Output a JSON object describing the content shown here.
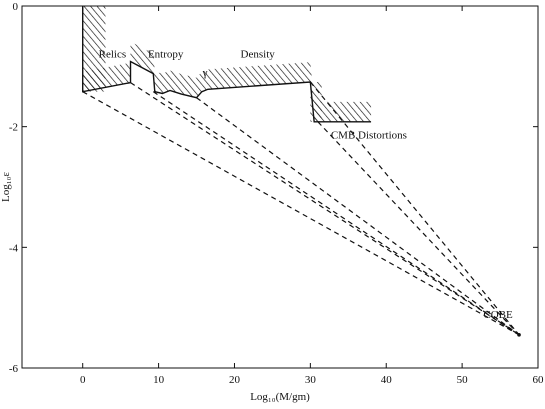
{
  "chart_data": {
    "type": "line",
    "title": "",
    "xlabel": "Log₁₀(M/gm)",
    "ylabel": "Log₁₀ε",
    "xlim": [
      -8,
      60
    ],
    "ylim": [
      -6,
      0
    ],
    "xticks": [
      {
        "value": 0,
        "label": "0"
      },
      {
        "value": 10,
        "label": "10"
      },
      {
        "value": 20,
        "label": "20"
      },
      {
        "value": 30,
        "label": "30"
      },
      {
        "value": 40,
        "label": "40"
      },
      {
        "value": 50,
        "label": "50"
      },
      {
        "value": 60,
        "label": "60"
      }
    ],
    "yticks": [
      {
        "value": 0,
        "label": "0"
      },
      {
        "value": -2,
        "label": "-2"
      },
      {
        "value": -4,
        "label": "-4"
      },
      {
        "value": -6,
        "label": "-6"
      }
    ],
    "grid": false,
    "legend": "none",
    "constraint_boundary": {
      "style": "solid hatched",
      "x": [
        0,
        0,
        6.3,
        6.3,
        6.3,
        9.3,
        9.5,
        10.5,
        11.5,
        13,
        15,
        15.7,
        16.5,
        30,
        30.5,
        31,
        38
      ],
      "y": [
        0,
        -1.42,
        -1.27,
        -1.27,
        -0.92,
        -1.12,
        -1.42,
        -1.45,
        -1.4,
        -1.46,
        -1.52,
        -1.42,
        -1.38,
        -1.26,
        -1.92,
        -1.92,
        -1.92
      ]
    },
    "cobe_point": {
      "x": 57.5,
      "y": -5.45
    },
    "dashed_lines": [
      {
        "x": [
          0,
          57.5
        ],
        "y": [
          -1.42,
          -5.45
        ]
      },
      {
        "x": [
          6.3,
          57.5
        ],
        "y": [
          -1.27,
          -5.45
        ]
      },
      {
        "x": [
          9.3,
          57.5
        ],
        "y": [
          -1.42,
          -5.45
        ]
      },
      {
        "x": [
          15,
          57.5
        ],
        "y": [
          -1.52,
          -5.45
        ]
      },
      {
        "x": [
          30,
          57.5
        ],
        "y": [
          -1.26,
          -5.45
        ]
      },
      {
        "x": [
          31,
          57.5
        ],
        "y": [
          -1.92,
          -5.45
        ]
      }
    ],
    "annotations": [
      {
        "id": "relics",
        "text": "Relics",
        "x": 2.1,
        "y": -0.85
      },
      {
        "id": "entropy",
        "text": "Entropy",
        "x": 8.6,
        "y": -0.85
      },
      {
        "id": "gamma",
        "text": "γ",
        "x": 15.8,
        "y": -1.16
      },
      {
        "id": "density",
        "text": "Density",
        "x": 20.8,
        "y": -0.85
      },
      {
        "id": "cmb",
        "text": "CMB Distortions",
        "x": 32.7,
        "y": -2.2
      },
      {
        "id": "cobe",
        "text": "COBE",
        "x": 52.8,
        "y": -5.17
      }
    ]
  }
}
